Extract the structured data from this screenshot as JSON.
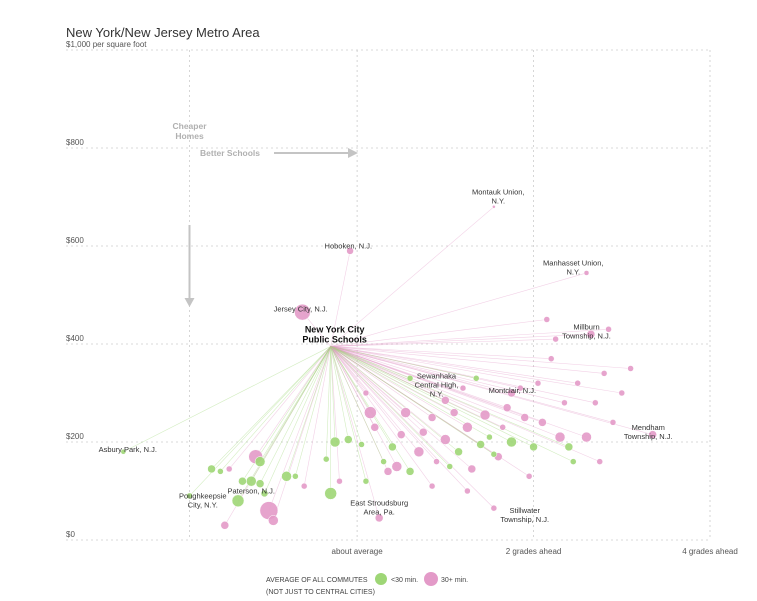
{
  "title": "New York/New Jersey Metro Area",
  "colors": {
    "green": "#9ed676",
    "pink": "#e39ac8",
    "grid": "#cccccc",
    "arrow": "#c4c4c4"
  },
  "chart_data": {
    "type": "scatter",
    "title": "New York/New Jersey Metro Area",
    "y_unit": "per square foot",
    "ylim": [
      0,
      1000
    ],
    "yticks": [
      {
        "value": 0,
        "label": "$0"
      },
      {
        "value": 200,
        "label": "$200"
      },
      {
        "value": 400,
        "label": "$400"
      },
      {
        "value": 600,
        "label": "$600"
      },
      {
        "value": 800,
        "label": "$800"
      },
      {
        "value": 1000,
        "label": "$1,000 per square foot"
      }
    ],
    "xlim": [
      -3.3,
      4.0
    ],
    "xticks": [
      {
        "value": -1.9,
        "label": ""
      },
      {
        "value": 0,
        "label": "about average"
      },
      {
        "value": 2,
        "label": "2 grades ahead"
      },
      {
        "value": 4,
        "label": "4 grades ahead"
      }
    ],
    "grid": true,
    "origin": {
      "x": -0.3,
      "y": 395,
      "label_line1": "New York City",
      "label_line2": "Public Schools"
    },
    "guides": {
      "cheaper_line1": "Cheaper",
      "cheaper_line2": "Homes",
      "better": "Better Schools"
    },
    "legend": {
      "line1": "AVERAGE OF ALL COMMUTES",
      "line2": "(NOT JUST TO CENTRAL CITIES)",
      "green_label": "<30 min.",
      "pink_label": "30+ min."
    },
    "labels": [
      {
        "lines": [
          "Asbury Park, N.J."
        ],
        "x": -2.6,
        "y": 180
      },
      {
        "lines": [
          "Poughkeepsie",
          "City, N.Y."
        ],
        "x": -1.75,
        "y": 85
      },
      {
        "lines": [
          "Paterson, N.J."
        ],
        "x": -1.2,
        "y": 95
      },
      {
        "lines": [
          "Jersey City, N.J."
        ],
        "x": -0.64,
        "y": 466
      },
      {
        "lines": [
          "Hoboken, N.J."
        ],
        "x": -0.1,
        "y": 595
      },
      {
        "lines": [
          "Montauk Union,",
          "N.Y."
        ],
        "x": 1.6,
        "y": 705
      },
      {
        "lines": [
          "Manhasset Union,",
          "N.Y."
        ],
        "x": 2.45,
        "y": 560
      },
      {
        "lines": [
          "Millburn",
          "Township, N.J."
        ],
        "x": 2.6,
        "y": 430
      },
      {
        "lines": [
          "Sewanhaka",
          "Central High,",
          "N.Y."
        ],
        "x": 0.9,
        "y": 330
      },
      {
        "lines": [
          "Montclair, N.J."
        ],
        "x": 1.76,
        "y": 300
      },
      {
        "lines": [
          "East Stroudsburg",
          "Area, Pa."
        ],
        "x": 0.25,
        "y": 70
      },
      {
        "lines": [
          "Stillwater",
          "Township, N.J."
        ],
        "x": 1.9,
        "y": 55
      },
      {
        "lines": [
          "Mendham",
          "Township, N.J."
        ],
        "x": 3.3,
        "y": 225
      }
    ],
    "points": [
      {
        "name": "Asbury Park, N.J.",
        "x": -2.65,
        "y": 180,
        "r": 2.5,
        "commute": "green"
      },
      {
        "name": "Hoboken, N.J.",
        "x": -0.08,
        "y": 590,
        "r": 3.5,
        "commute": "pink"
      },
      {
        "name": "Jersey City, N.J.",
        "x": -0.62,
        "y": 465,
        "r": 8,
        "commute": "pink"
      },
      {
        "name": "Montauk Union, N.Y.",
        "x": 1.55,
        "y": 680,
        "r": 1.5,
        "commute": "pink"
      },
      {
        "name": "Manhasset Union, N.Y.",
        "x": 2.6,
        "y": 545,
        "r": 2.5,
        "commute": "pink"
      },
      {
        "name": "Millburn Township, N.J.",
        "x": 2.85,
        "y": 430,
        "r": 3,
        "commute": "pink"
      },
      {
        "name": "Mendham Township, N.J.",
        "x": 3.35,
        "y": 215,
        "r": 4,
        "commute": "pink"
      },
      {
        "name": "Montclair, N.J.",
        "x": 1.75,
        "y": 300,
        "r": 4,
        "commute": "pink"
      },
      {
        "name": "Sewanhaka Central High, N.Y.",
        "x": 1.0,
        "y": 285,
        "r": 4,
        "commute": "pink"
      },
      {
        "name": "East Stroudsburg Area, Pa.",
        "x": 0.25,
        "y": 45,
        "r": 4,
        "commute": "pink"
      },
      {
        "name": "Stillwater Township, N.J.",
        "x": 1.55,
        "y": 65,
        "r": 3,
        "commute": "pink"
      },
      {
        "name": "Paterson, N.J.",
        "x": -1.05,
        "y": 95,
        "r": 3.5,
        "commute": "green"
      },
      {
        "name": "Poughkeepsie City, N.Y.",
        "x": -1.9,
        "y": 90,
        "r": 3,
        "commute": "green"
      },
      {
        "x": -1.0,
        "y": 60,
        "r": 9,
        "commute": "pink"
      },
      {
        "x": -0.95,
        "y": 40,
        "r": 5,
        "commute": "pink"
      },
      {
        "x": -1.5,
        "y": 30,
        "r": 4,
        "commute": "pink"
      },
      {
        "x": -1.35,
        "y": 80,
        "r": 6,
        "commute": "green"
      },
      {
        "x": -1.2,
        "y": 120,
        "r": 5,
        "commute": "green"
      },
      {
        "x": -1.1,
        "y": 115,
        "r": 4,
        "commute": "green"
      },
      {
        "x": -1.3,
        "y": 120,
        "r": 4,
        "commute": "green"
      },
      {
        "x": -1.15,
        "y": 170,
        "r": 7,
        "commute": "pink"
      },
      {
        "x": -1.1,
        "y": 160,
        "r": 5,
        "commute": "green"
      },
      {
        "x": -1.65,
        "y": 145,
        "r": 4,
        "commute": "green"
      },
      {
        "x": -1.55,
        "y": 140,
        "r": 3,
        "commute": "green"
      },
      {
        "x": -1.45,
        "y": 145,
        "r": 3,
        "commute": "pink"
      },
      {
        "x": -0.8,
        "y": 130,
        "r": 5,
        "commute": "green"
      },
      {
        "x": -0.7,
        "y": 130,
        "r": 3,
        "commute": "green"
      },
      {
        "x": -0.3,
        "y": 95,
        "r": 6,
        "commute": "green"
      },
      {
        "x": -0.2,
        "y": 120,
        "r": 3,
        "commute": "pink"
      },
      {
        "x": -0.35,
        "y": 165,
        "r": 3,
        "commute": "green"
      },
      {
        "x": -0.25,
        "y": 200,
        "r": 5,
        "commute": "green"
      },
      {
        "x": -0.1,
        "y": 205,
        "r": 4,
        "commute": "green"
      },
      {
        "x": 0.05,
        "y": 195,
        "r": 3,
        "commute": "green"
      },
      {
        "x": 0.15,
        "y": 260,
        "r": 6,
        "commute": "pink"
      },
      {
        "x": 0.2,
        "y": 230,
        "r": 4,
        "commute": "pink"
      },
      {
        "x": 0.1,
        "y": 300,
        "r": 3,
        "commute": "pink"
      },
      {
        "x": 0.55,
        "y": 260,
        "r": 5,
        "commute": "pink"
      },
      {
        "x": 0.5,
        "y": 215,
        "r": 4,
        "commute": "pink"
      },
      {
        "x": 0.4,
        "y": 190,
        "r": 4,
        "commute": "green"
      },
      {
        "x": 0.45,
        "y": 150,
        "r": 5,
        "commute": "pink"
      },
      {
        "x": 0.35,
        "y": 140,
        "r": 4,
        "commute": "pink"
      },
      {
        "x": 0.6,
        "y": 140,
        "r": 4,
        "commute": "green"
      },
      {
        "x": 0.7,
        "y": 180,
        "r": 5,
        "commute": "pink"
      },
      {
        "x": 0.75,
        "y": 220,
        "r": 4,
        "commute": "pink"
      },
      {
        "x": 0.85,
        "y": 250,
        "r": 4,
        "commute": "pink"
      },
      {
        "x": 0.9,
        "y": 160,
        "r": 3,
        "commute": "pink"
      },
      {
        "x": 1.0,
        "y": 205,
        "r": 5,
        "commute": "pink"
      },
      {
        "x": 1.05,
        "y": 150,
        "r": 3,
        "commute": "green"
      },
      {
        "x": 1.1,
        "y": 260,
        "r": 4,
        "commute": "pink"
      },
      {
        "x": 1.15,
        "y": 180,
        "r": 4,
        "commute": "green"
      },
      {
        "x": 1.2,
        "y": 310,
        "r": 3,
        "commute": "pink"
      },
      {
        "x": 1.25,
        "y": 230,
        "r": 5,
        "commute": "pink"
      },
      {
        "x": 1.3,
        "y": 145,
        "r": 4,
        "commute": "pink"
      },
      {
        "x": 1.4,
        "y": 195,
        "r": 4,
        "commute": "green"
      },
      {
        "x": 1.45,
        "y": 255,
        "r": 5,
        "commute": "pink"
      },
      {
        "x": 1.5,
        "y": 210,
        "r": 3,
        "commute": "green"
      },
      {
        "x": 1.6,
        "y": 170,
        "r": 4,
        "commute": "pink"
      },
      {
        "x": 1.65,
        "y": 230,
        "r": 3,
        "commute": "pink"
      },
      {
        "x": 1.7,
        "y": 270,
        "r": 4,
        "commute": "pink"
      },
      {
        "x": 1.75,
        "y": 200,
        "r": 5,
        "commute": "green"
      },
      {
        "x": 1.85,
        "y": 310,
        "r": 3,
        "commute": "pink"
      },
      {
        "x": 1.9,
        "y": 250,
        "r": 4,
        "commute": "pink"
      },
      {
        "x": 2.0,
        "y": 190,
        "r": 4,
        "commute": "green"
      },
      {
        "x": 2.05,
        "y": 320,
        "r": 3,
        "commute": "pink"
      },
      {
        "x": 2.1,
        "y": 240,
        "r": 4,
        "commute": "pink"
      },
      {
        "x": 2.2,
        "y": 370,
        "r": 3,
        "commute": "pink"
      },
      {
        "x": 2.25,
        "y": 410,
        "r": 3,
        "commute": "pink"
      },
      {
        "x": 2.3,
        "y": 210,
        "r": 5,
        "commute": "pink"
      },
      {
        "x": 2.35,
        "y": 280,
        "r": 3,
        "commute": "pink"
      },
      {
        "x": 2.4,
        "y": 190,
        "r": 4,
        "commute": "green"
      },
      {
        "x": 2.5,
        "y": 320,
        "r": 3,
        "commute": "pink"
      },
      {
        "x": 2.6,
        "y": 210,
        "r": 5,
        "commute": "pink"
      },
      {
        "x": 2.65,
        "y": 420,
        "r": 4,
        "commute": "pink"
      },
      {
        "x": 2.7,
        "y": 280,
        "r": 3,
        "commute": "pink"
      },
      {
        "x": 2.8,
        "y": 340,
        "r": 3,
        "commute": "pink"
      },
      {
        "x": 2.9,
        "y": 240,
        "r": 3,
        "commute": "pink"
      },
      {
        "x": 3.0,
        "y": 300,
        "r": 3,
        "commute": "pink"
      },
      {
        "x": 3.1,
        "y": 350,
        "r": 3,
        "commute": "pink"
      },
      {
        "x": 2.75,
        "y": 160,
        "r": 3,
        "commute": "pink"
      },
      {
        "x": 1.95,
        "y": 130,
        "r": 3,
        "commute": "pink"
      },
      {
        "x": 0.85,
        "y": 110,
        "r": 3,
        "commute": "pink"
      },
      {
        "x": 1.25,
        "y": 100,
        "r": 3,
        "commute": "pink"
      },
      {
        "x": 0.1,
        "y": 120,
        "r": 3,
        "commute": "green"
      },
      {
        "x": -0.6,
        "y": 110,
        "r": 3,
        "commute": "pink"
      },
      {
        "x": 1.35,
        "y": 330,
        "r": 3,
        "commute": "green"
      },
      {
        "x": 0.6,
        "y": 330,
        "r": 3,
        "commute": "green"
      },
      {
        "x": 2.15,
        "y": 450,
        "r": 3,
        "commute": "pink"
      },
      {
        "x": 0.3,
        "y": 160,
        "r": 3,
        "commute": "green"
      },
      {
        "x": 1.55,
        "y": 175,
        "r": 3,
        "commute": "green"
      },
      {
        "x": 2.45,
        "y": 160,
        "r": 3,
        "commute": "green"
      }
    ]
  }
}
